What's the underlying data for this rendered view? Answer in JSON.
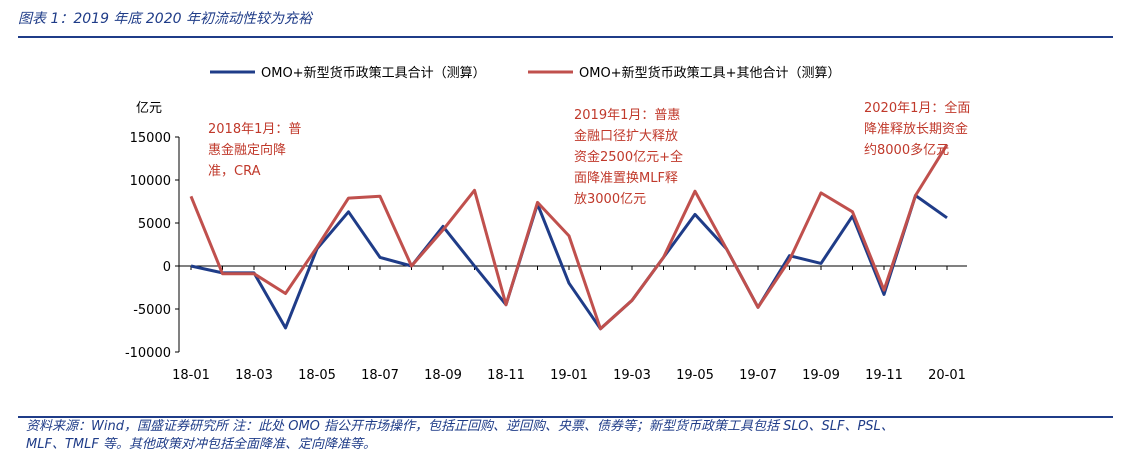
{
  "header": {
    "title": "图表 1：2019 年底 2020 年初流动性较为充裕"
  },
  "footer": {
    "source_line1": "资料来源：Wind，国盛证券研究所 注：此处 OMO 指公开市场操作，包括正回购、逆回购、央票、债券等；新型货币政策工具包括 SLO、SLF、PSL、",
    "source_line2": "MLF、TMLF 等。其他政策对冲包括全面降准、定向降准等。"
  },
  "chart_data": {
    "type": "line",
    "ylabel": "亿元",
    "ylim": [
      -10000,
      15000
    ],
    "yticks": [
      15000,
      10000,
      5000,
      0,
      -5000,
      -10000
    ],
    "ytick_labels": [
      "15000",
      "10000",
      "5000",
      "0",
      "-5000",
      "-10000"
    ],
    "x": [
      "18-01",
      "18-02",
      "18-03",
      "18-04",
      "18-05",
      "18-06",
      "18-07",
      "18-08",
      "18-09",
      "18-10",
      "18-11",
      "18-12",
      "19-01",
      "19-02",
      "19-03",
      "19-04",
      "19-05",
      "19-06",
      "19-07",
      "19-08",
      "19-09",
      "19-10",
      "19-11",
      "19-12",
      "20-01"
    ],
    "xtick_labels": [
      "18-01",
      "18-03",
      "18-05",
      "18-07",
      "18-09",
      "18-11",
      "19-01",
      "19-03",
      "19-05",
      "19-07",
      "19-09",
      "19-11",
      "20-01"
    ],
    "legend_position": "top",
    "series": [
      {
        "name": "OMO+新型货币政策工具合计（测算）",
        "color": "#1f3c88",
        "values": [
          0,
          -800,
          -800,
          -7200,
          2000,
          6300,
          1000,
          0,
          4600,
          0,
          -4500,
          7200,
          -2000,
          -7300,
          -4000,
          1000,
          6000,
          2000,
          -4800,
          1200,
          300,
          5800,
          -3300,
          8200,
          5600
        ]
      },
      {
        "name": "OMO+新型货币政策工具+其他合计（测算）",
        "color": "#c0504d",
        "values": [
          8100,
          -900,
          -900,
          -3200,
          2200,
          7900,
          8100,
          0,
          4200,
          8800,
          -4500,
          7400,
          3500,
          -7300,
          -4000,
          1000,
          8700,
          2000,
          -4800,
          700,
          8500,
          6300,
          -2800,
          8200,
          14100
        ]
      }
    ],
    "annotations": [
      {
        "lines": [
          "2018年1月：普",
          "惠金融定向降",
          "准，CRA"
        ]
      },
      {
        "lines": [
          "2019年1月：普惠",
          "金融口径扩大释放",
          "资金2500亿元+全",
          "面降准置换MLF释",
          "放3000亿元"
        ]
      },
      {
        "lines": [
          "2020年1月：全面",
          "降准释放长期资金",
          "约8000多亿元"
        ]
      }
    ]
  }
}
